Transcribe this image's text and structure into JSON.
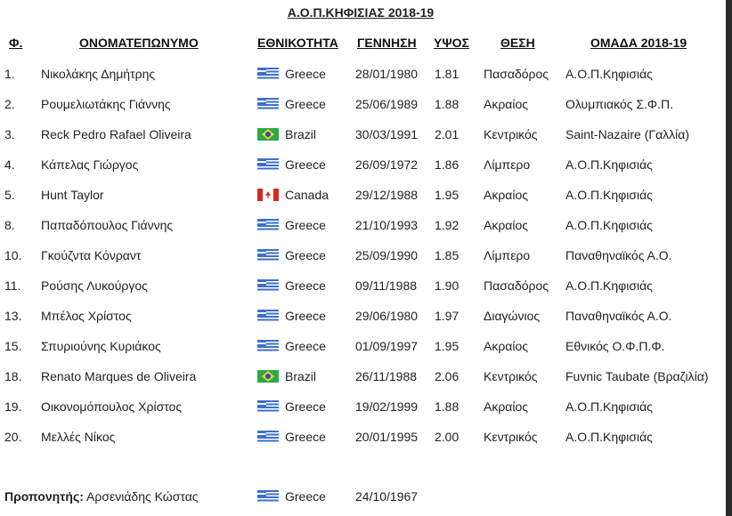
{
  "title": "Α.Ο.Π.ΚΗΦΙΣΙΑΣ 2018-19",
  "headers": {
    "number": "Φ.",
    "name": "ΟΝΟΜΑΤΕΠΩΝΥΜΟ",
    "nationality": "ΕΘΝΙΚΟΤΗΤΑ",
    "birth": "ΓΕΝΝΗΣΗ",
    "height": "ΥΨΟΣ",
    "position": "ΘΕΣΗ",
    "team": "ΟΜΑΔΑ 2018-19"
  },
  "players": [
    {
      "number": "1.",
      "name": "Νικολάκης Δημήτρης",
      "flag": "gr",
      "nationality": "Greece",
      "birth": "28/01/1980",
      "height": "1.81",
      "position": "Πασαδόρος",
      "team": "Α.Ο.Π.Κηφισιάς"
    },
    {
      "number": "2.",
      "name": "Ρουμελιωτάκης Γιάννης",
      "flag": "gr",
      "nationality": "Greece",
      "birth": "25/06/1989",
      "height": "1.88",
      "position": "Ακραίος",
      "team": "Ολυμπιακός Σ.Φ.Π."
    },
    {
      "number": "3.",
      "name": "Reck Pedro Rafael Oliveira",
      "flag": "br",
      "nationality": "Brazil",
      "birth": "30/03/1991",
      "height": "2.01",
      "position": "Κεντρικός",
      "team": "Saint-Nazaire (Γαλλία)"
    },
    {
      "number": "4.",
      "name": "Κάπελας Γιώργος",
      "flag": "gr",
      "nationality": "Greece",
      "birth": "26/09/1972",
      "height": "1.86",
      "position": "Λίμπερο",
      "team": "Α.Ο.Π.Κηφισιάς"
    },
    {
      "number": "5.",
      "name": "Hunt Taylor",
      "flag": "ca",
      "nationality": "Canada",
      "birth": "29/12/1988",
      "height": "1.95",
      "position": "Ακραίος",
      "team": "Α.Ο.Π.Κηφισιάς"
    },
    {
      "number": "8.",
      "name": "Παπαδόπουλος Γιάννης",
      "flag": "gr",
      "nationality": "Greece",
      "birth": "21/10/1993",
      "height": "1.92",
      "position": "Ακραίος",
      "team": "Α.Ο.Π.Κηφισιάς"
    },
    {
      "number": "10.",
      "name": "Γκούζντα Κόνραντ",
      "flag": "gr",
      "nationality": "Greece",
      "birth": "25/09/1990",
      "height": "1.85",
      "position": "Λίμπερο",
      "team": "Παναθηναϊκός Α.Ο."
    },
    {
      "number": "11.",
      "name": "Ρούσης Λυκούργος",
      "flag": "gr",
      "nationality": "Greece",
      "birth": "09/11/1988",
      "height": "1.90",
      "position": "Πασαδόρος",
      "team": "Α.Ο.Π.Κηφισιάς"
    },
    {
      "number": "13.",
      "name": "Μπέλος Χρίστος",
      "flag": "gr",
      "nationality": "Greece",
      "birth": "29/06/1980",
      "height": "1.97",
      "position": "Διαγώνιος",
      "team": "Παναθηναϊκός Α.Ο."
    },
    {
      "number": "15.",
      "name": "Σπυριούνης Κυριάκος",
      "flag": "gr",
      "nationality": "Greece",
      "birth": "01/09/1997",
      "height": "1.95",
      "position": "Ακραίος",
      "team": "Εθνικός Ο.Φ.Π.Φ."
    },
    {
      "number": "18.",
      "name": "Renato Marques de Oliveira",
      "flag": "br",
      "nationality": "Brazil",
      "birth": "26/11/1988",
      "height": "2.06",
      "position": "Κεντρικός",
      "team": "Fuvnic Taubate (Βραζιλία)"
    },
    {
      "number": "19.",
      "name": "Οικονομόπουλος Χρίστος",
      "flag": "gr",
      "nationality": "Greece",
      "birth": "19/02/1999",
      "height": "1.88",
      "position": "Ακραίος",
      "team": "Α.Ο.Π.Κηφισιάς"
    },
    {
      "number": "20.",
      "name": "Μελλές Νίκος",
      "flag": "gr",
      "nationality": "Greece",
      "birth": "20/01/1995",
      "height": "2.00",
      "position": "Κεντρικός",
      "team": "Α.Ο.Π.Κηφισιάς"
    }
  ],
  "coach": {
    "label": "Προπονητής:",
    "name": "Αρσενιάδης Κώστας",
    "flag": "gr",
    "nationality": "Greece",
    "birth": "24/10/1967"
  }
}
